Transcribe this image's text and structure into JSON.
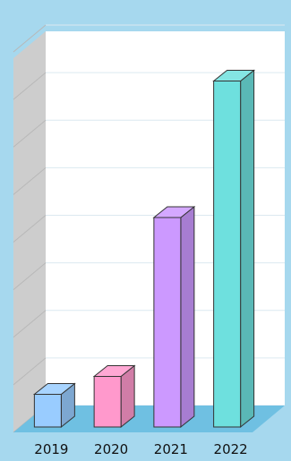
{
  "chart_data": {
    "type": "bar",
    "style": "3d",
    "categories": [
      "2019",
      "2020",
      "2021",
      "2022"
    ],
    "values": [
      1.7,
      2.5,
      9.6,
      15.7
    ],
    "ylim": [
      0,
      17
    ],
    "title": "",
    "xlabel": "",
    "ylabel": "",
    "y_tick_labels": "hidden",
    "grid": true,
    "legend": "none",
    "colors": [
      "#99CCFF",
      "#FF99CC",
      "#CC99FF",
      "#6EE0DE"
    ],
    "background_color": "#A6D8EE",
    "floor_color": "#6FC0E2",
    "left_wall_color": "#CDCDCD",
    "back_wall_color": "#FFFFFF"
  }
}
